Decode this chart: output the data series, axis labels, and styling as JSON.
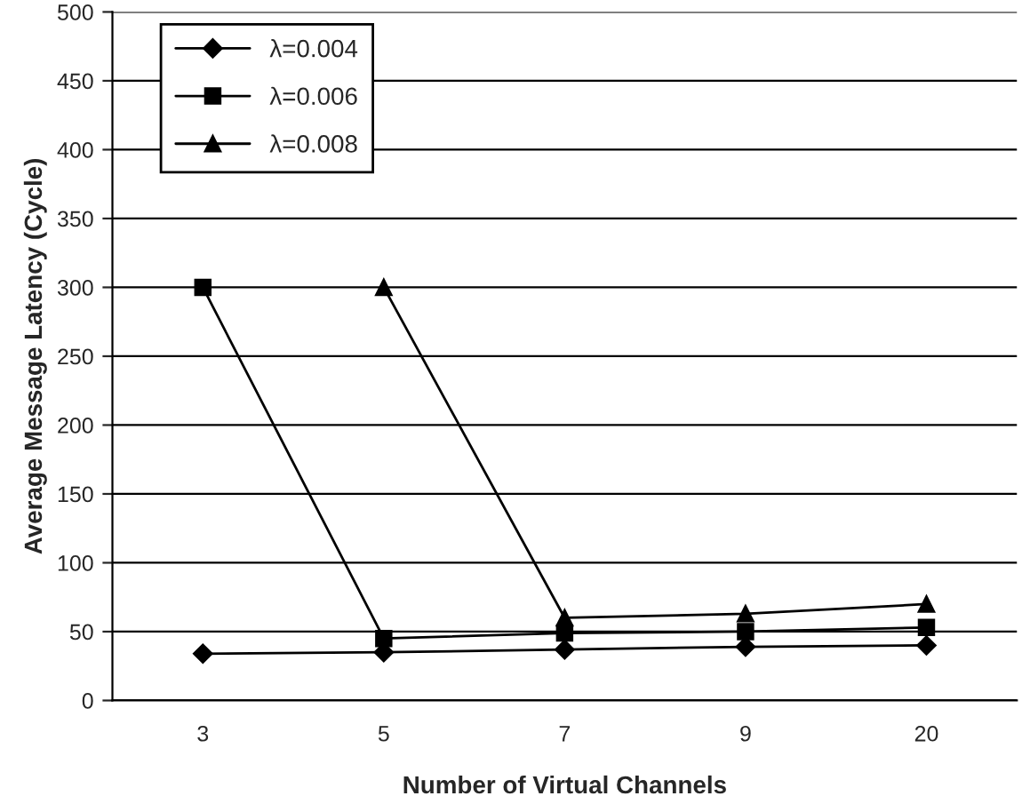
{
  "chart_data": {
    "type": "line",
    "xlabel": "Number of Virtual Channels",
    "ylabel": "Average Message Latency (Cycle)",
    "categories": [
      "3",
      "5",
      "7",
      "9",
      "20"
    ],
    "series": [
      {
        "name": "λ=0.004",
        "color": "#000000",
        "marker": "diamond",
        "values": [
          34,
          35,
          37,
          39,
          40
        ]
      },
      {
        "name": "λ=0.006",
        "color": "#000000",
        "marker": "square",
        "values": [
          300,
          45,
          49,
          50,
          53
        ]
      },
      {
        "name": "λ=0.008",
        "color": "#000000",
        "marker": "triangle",
        "values": [
          null,
          300,
          60,
          63,
          70
        ]
      }
    ],
    "ylim": [
      0,
      500
    ],
    "yticks": [
      0,
      50,
      100,
      150,
      200,
      250,
      300,
      350,
      400,
      450,
      500
    ],
    "grid": "y",
    "legend": "top left",
    "line_style": "solid"
  }
}
